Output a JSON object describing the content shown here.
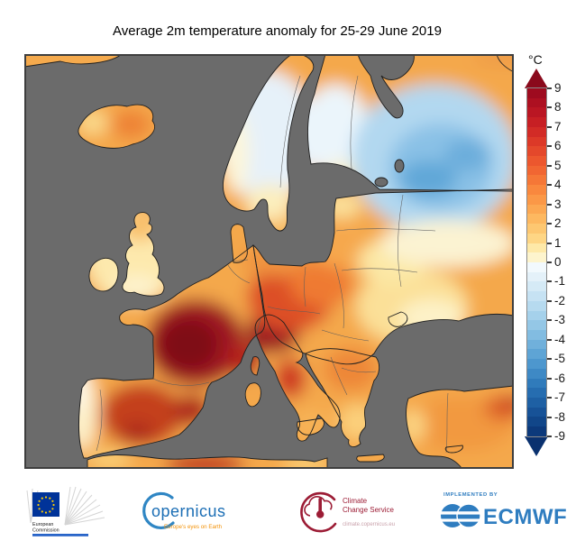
{
  "title": "Average 2m temperature anomaly for 25-29 June 2019",
  "colorbar": {
    "unit": "°C",
    "tick_labels": [
      "9",
      "8",
      "7",
      "6",
      "5",
      "4",
      "3",
      "2",
      "1",
      "0",
      "-1",
      "-2",
      "-3",
      "-4",
      "-5",
      "-6",
      "-7",
      "-8",
      "-9"
    ],
    "band_colors": [
      "#9e0b1f",
      "#ad1021",
      "#ba1623",
      "#c71f24",
      "#d22b26",
      "#dc3928",
      "#e4482b",
      "#ec572e",
      "#f16632",
      "#f57737",
      "#f9883e",
      "#fb9847",
      "#fca852",
      "#fdb860",
      "#fdc771",
      "#fed685",
      "#fee9a8",
      "#fdf4cd",
      "#f2f9fd",
      "#e4f1f9",
      "#d5eaf6",
      "#c6e2f3",
      "#b6daef",
      "#a5d1eb",
      "#94c7e6",
      "#82bce1",
      "#70b0db",
      "#5ea4d5",
      "#4d97ce",
      "#3e89c5",
      "#307bbb",
      "#266db0",
      "#1e60a4",
      "#175297",
      "#114689",
      "#0c397b"
    ],
    "arrow_top_color": "#8a0a1c",
    "arrow_bottom_color": "#0a316f"
  },
  "map": {
    "sea_color": "#6b6b6b",
    "frame_color": "#3e3e3e",
    "description": "Filled-contour map of 2m temperature anomaly over Europe",
    "regions": [
      {
        "name": "France",
        "anomaly": "+7 to +9 °C"
      },
      {
        "name": "Alps / Northern Italy",
        "anomaly": "+7 to +9 °C"
      },
      {
        "name": "Iberian Peninsula",
        "anomaly": "+4 to +8 °C"
      },
      {
        "name": "Central Europe",
        "anomaly": "+3 to +6 °C"
      },
      {
        "name": "British Isles",
        "anomaly": "+1 to +3 °C"
      },
      {
        "name": "Iceland",
        "anomaly": "+2 to +5 °C"
      },
      {
        "name": "Scandinavia",
        "anomaly": "-1 to +2 °C"
      },
      {
        "name": "North-west Russia",
        "anomaly": "-2 to -4 °C"
      },
      {
        "name": "Eastern Europe / Ukraine",
        "anomaly": "0 to +2 °C"
      },
      {
        "name": "Balkans",
        "anomaly": "+2 to +4 °C"
      },
      {
        "name": "Turkey",
        "anomaly": "+2 to +5 °C"
      },
      {
        "name": "North Africa",
        "anomaly": "+2 to +7 °C"
      }
    ]
  },
  "footer": {
    "ec": {
      "line1": "European",
      "line2": "Commission"
    },
    "copernicus": {
      "wordmark": "opernicus",
      "tagline": "Europe's eyes on Earth"
    },
    "ccs": {
      "line1": "Climate",
      "line2": "Change Service",
      "url": "climate.copernicus.eu"
    },
    "ecmwf": {
      "implemented_by": "IMPLEMENTED BY",
      "wordmark": "ECMWF"
    }
  }
}
